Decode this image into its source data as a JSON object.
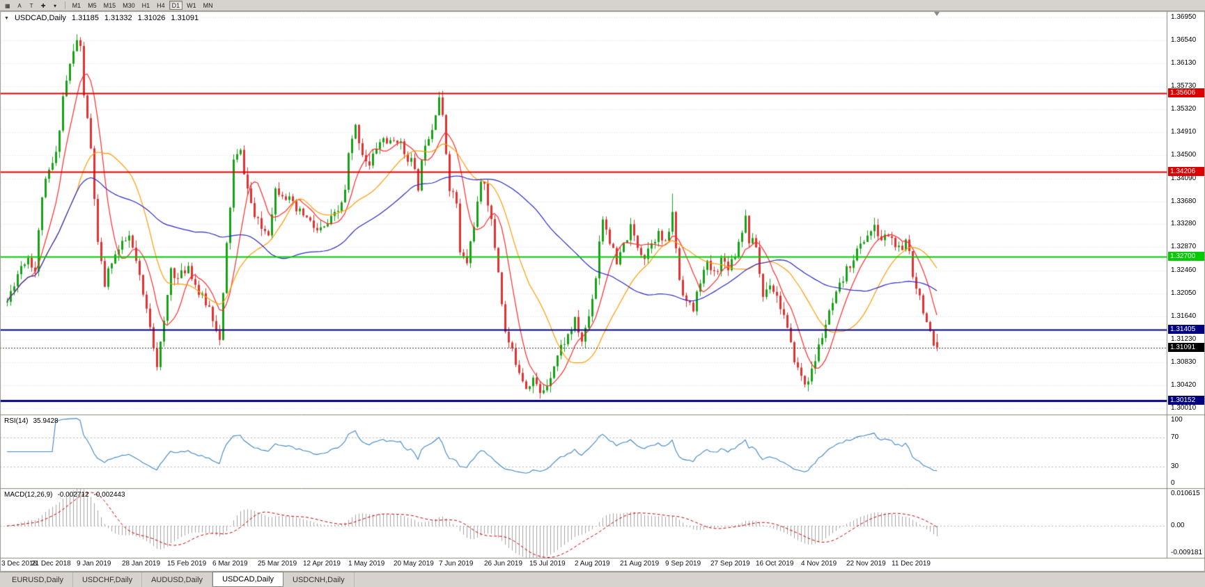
{
  "toolbar": {
    "icons": [
      {
        "name": "charts-grid-icon",
        "glyph": "▦"
      },
      {
        "name": "cursor-tool-icon",
        "glyph": "A"
      },
      {
        "name": "text-tool-icon",
        "glyph": "T"
      },
      {
        "name": "crosshair-tool-icon",
        "glyph": "✚"
      },
      {
        "name": "draw-tools-caret-icon",
        "glyph": "▾"
      }
    ],
    "timeframes": [
      "M1",
      "M5",
      "M15",
      "M30",
      "H1",
      "H4",
      "D1",
      "W1",
      "MN"
    ],
    "active_timeframe": "D1"
  },
  "chart": {
    "symbol_header": {
      "icon": "▼",
      "symbol": "USDCAD,Daily",
      "open": "1.31185",
      "high": "1.31332",
      "low": "1.31026",
      "close": "1.31091"
    },
    "price_axis_labels": [
      "1.36950",
      "1.36540",
      "1.36130",
      "1.35730",
      "1.35320",
      "1.34910",
      "1.34500",
      "1.34090",
      "1.33680",
      "1.33280",
      "1.32870",
      "1.32460",
      "1.32050",
      "1.31640",
      "1.31230",
      "1.30830",
      "1.30420",
      "1.30010"
    ],
    "date_labels": [
      "3 Dec 2018",
      "21 Dec 2018",
      "9 Jan 2019",
      "28 Jan 2019",
      "15 Feb 2019",
      "6 Mar 2019",
      "25 Mar 2019",
      "12 Apr 2019",
      "1 May 2019",
      "20 May 2019",
      "7 Jun 2019",
      "26 Jun 2019",
      "15 Jul 2019",
      "2 Aug 2019",
      "21 Aug 2019",
      "9 Sep 2019",
      "27 Sep 2019",
      "16 Oct 2019",
      "4 Nov 2019",
      "22 Nov 2019",
      "11 Dec 2019"
    ],
    "levels": [
      {
        "label": "1.35606",
        "price": 1.35606,
        "color": "#dd0000",
        "width": 2
      },
      {
        "label": "1.34206",
        "price": 1.34206,
        "color": "#dd0000",
        "width": 2
      },
      {
        "label": "1.32700",
        "price": 1.327,
        "color": "#00cc00",
        "width": 2
      },
      {
        "label": "1.31405",
        "price": 1.31405,
        "color": "#000080",
        "width": 2
      },
      {
        "label": "1.30152",
        "price": 1.30152,
        "color": "#000080",
        "width": 3
      }
    ],
    "current_price": {
      "label": "1.31091",
      "price": 1.31091,
      "color": "#000000"
    }
  },
  "rsi": {
    "label": "RSI(14)",
    "value": "35.9428",
    "color": "#3d85c6",
    "levels": [
      70,
      30
    ],
    "axis_labels": [
      {
        "text": "100",
        "v": 100
      },
      {
        "text": "70",
        "v": 70
      },
      {
        "text": "30",
        "v": 30
      },
      {
        "text": "0",
        "v": 0
      }
    ]
  },
  "macd": {
    "label": "MACD(12,26,9)",
    "value_main": "-0.002712",
    "value_signal": "-0.002443",
    "bar_color": "#a3a3a3",
    "signal_color": "#cc0000",
    "axis_labels": [
      {
        "text": "0.010615",
        "v": 0.010615
      },
      {
        "text": "0.00",
        "v": 0
      },
      {
        "text": "-0.009181",
        "v": -0.009181
      }
    ]
  },
  "tabs": [
    {
      "label": "EURUSD,Daily",
      "active": false
    },
    {
      "label": "USDCHF,Daily",
      "active": false
    },
    {
      "label": "AUDUSD,Daily",
      "active": false
    },
    {
      "label": "USDCAD,Daily",
      "active": true
    },
    {
      "label": "USDCNH,Daily",
      "active": false
    }
  ],
  "chart_data": {
    "type": "candlestick",
    "symbol": "USDCAD",
    "timeframe": "Daily",
    "candles": 268,
    "seed": 11,
    "price_top": 1.3706,
    "price_bottom": 1.299,
    "ohlc_last": {
      "open": 1.31185,
      "high": 1.31332,
      "low": 1.31026,
      "close": 1.31091
    },
    "indicators": {
      "rsi_period": 14,
      "rsi_last": 35.9428,
      "macd": [
        12,
        26,
        9
      ],
      "macd_last": -0.002712,
      "macd_signal_last": -0.002443
    },
    "levels": [
      1.35606,
      1.34206,
      1.327,
      1.31405,
      1.30152
    ],
    "waypoints": [
      [
        0,
        1.319
      ],
      [
        2,
        1.3225
      ],
      [
        4,
        1.3255
      ],
      [
        6,
        1.327
      ],
      [
        8,
        1.3245
      ],
      [
        10,
        1.338
      ],
      [
        12,
        1.342
      ],
      [
        14,
        1.345
      ],
      [
        16,
        1.3555
      ],
      [
        18,
        1.361
      ],
      [
        20,
        1.3655
      ],
      [
        21,
        1.364
      ],
      [
        22,
        1.356
      ],
      [
        24,
        1.346
      ],
      [
        26,
        1.329
      ],
      [
        28,
        1.322
      ],
      [
        30,
        1.3265
      ],
      [
        33,
        1.329
      ],
      [
        35,
        1.3305
      ],
      [
        37,
        1.326
      ],
      [
        39,
        1.32
      ],
      [
        41,
        1.315
      ],
      [
        43,
        1.308
      ],
      [
        45,
        1.315
      ],
      [
        47,
        1.325
      ],
      [
        49,
        1.323
      ],
      [
        52,
        1.3255
      ],
      [
        55,
        1.3205
      ],
      [
        58,
        1.318
      ],
      [
        60,
        1.3145
      ],
      [
        61,
        1.312
      ],
      [
        62,
        1.32
      ],
      [
        63,
        1.329
      ],
      [
        64,
        1.336
      ],
      [
        65,
        1.344
      ],
      [
        67,
        1.3455
      ],
      [
        69,
        1.339
      ],
      [
        71,
        1.334
      ],
      [
        73,
        1.332
      ],
      [
        75,
        1.3315
      ],
      [
        77,
        1.339
      ],
      [
        79,
        1.3385
      ],
      [
        81,
        1.337
      ],
      [
        83,
        1.335
      ],
      [
        85,
        1.3345
      ],
      [
        87,
        1.333
      ],
      [
        89,
        1.3315
      ],
      [
        91,
        1.332
      ],
      [
        93,
        1.3335
      ],
      [
        95,
        1.335
      ],
      [
        97,
        1.3385
      ],
      [
        98,
        1.345
      ],
      [
        100,
        1.35
      ],
      [
        102,
        1.3455
      ],
      [
        104,
        1.343
      ],
      [
        106,
        1.3465
      ],
      [
        108,
        1.348
      ],
      [
        110,
        1.347
      ],
      [
        112,
        1.348
      ],
      [
        114,
        1.3455
      ],
      [
        116,
        1.344
      ],
      [
        118,
        1.3395
      ],
      [
        120,
        1.3475
      ],
      [
        122,
        1.35
      ],
      [
        123,
        1.353
      ],
      [
        124,
        1.3555
      ],
      [
        125,
        1.3515
      ],
      [
        127,
        1.3395
      ],
      [
        129,
        1.3365
      ],
      [
        130,
        1.3275
      ],
      [
        132,
        1.326
      ],
      [
        134,
        1.333
      ],
      [
        136,
        1.3395
      ],
      [
        137,
        1.3405
      ],
      [
        139,
        1.333
      ],
      [
        141,
        1.3245
      ],
      [
        143,
        1.3135
      ],
      [
        145,
        1.31
      ],
      [
        147,
        1.307
      ],
      [
        149,
        1.304
      ],
      [
        151,
        1.3055
      ],
      [
        153,
        1.3025
      ],
      [
        155,
        1.3045
      ],
      [
        157,
        1.308
      ],
      [
        159,
        1.311
      ],
      [
        161,
        1.313
      ],
      [
        163,
        1.3155
      ],
      [
        165,
        1.312
      ],
      [
        167,
        1.3165
      ],
      [
        169,
        1.3235
      ],
      [
        170,
        1.33
      ],
      [
        171,
        1.334
      ],
      [
        173,
        1.33
      ],
      [
        175,
        1.3255
      ],
      [
        177,
        1.329
      ],
      [
        179,
        1.332
      ],
      [
        181,
        1.329
      ],
      [
        183,
        1.327
      ],
      [
        185,
        1.33
      ],
      [
        187,
        1.331
      ],
      [
        189,
        1.329
      ],
      [
        191,
        1.3345
      ],
      [
        193,
        1.323
      ],
      [
        195,
        1.319
      ],
      [
        197,
        1.3175
      ],
      [
        199,
        1.323
      ],
      [
        201,
        1.3255
      ],
      [
        203,
        1.324
      ],
      [
        205,
        1.3265
      ],
      [
        207,
        1.3255
      ],
      [
        209,
        1.3275
      ],
      [
        211,
        1.332
      ],
      [
        212,
        1.334
      ],
      [
        213,
        1.33
      ],
      [
        215,
        1.329
      ],
      [
        216,
        1.324
      ],
      [
        217,
        1.32
      ],
      [
        219,
        1.3225
      ],
      [
        221,
        1.32
      ],
      [
        223,
        1.3165
      ],
      [
        225,
        1.311
      ],
      [
        227,
        1.307
      ],
      [
        229,
        1.3045
      ],
      [
        231,
        1.3065
      ],
      [
        233,
        1.311
      ],
      [
        235,
        1.315
      ],
      [
        237,
        1.3185
      ],
      [
        239,
        1.3215
      ],
      [
        241,
        1.3245
      ],
      [
        243,
        1.327
      ],
      [
        245,
        1.329
      ],
      [
        247,
        1.331
      ],
      [
        249,
        1.332
      ],
      [
        251,
        1.33
      ],
      [
        253,
        1.331
      ],
      [
        255,
        1.329
      ],
      [
        257,
        1.3275
      ],
      [
        258,
        1.33
      ],
      [
        259,
        1.328
      ],
      [
        260,
        1.324
      ],
      [
        262,
        1.32
      ],
      [
        264,
        1.3155
      ],
      [
        266,
        1.3105
      ],
      [
        267,
        1.3109
      ]
    ],
    "wick_overrides": {
      "20": {
        "h": 1.3665
      },
      "43": {
        "l": 1.3068
      },
      "124": {
        "h": 1.3563
      },
      "153": {
        "l": 1.3018
      },
      "191": {
        "h": 1.3382
      },
      "229": {
        "l": 1.3038
      },
      "267": {
        "o": 1.31185,
        "h": 1.31332,
        "l": 1.31026,
        "c": 1.31091
      }
    },
    "moving_averages": [
      {
        "period": 8,
        "color": "#ff2a2a"
      },
      {
        "period": 21,
        "color": "#ff9c00"
      },
      {
        "period": 55,
        "color": "#2929c8"
      }
    ],
    "macd_scale": {
      "top": 0.010615,
      "bottom": -0.009181
    },
    "candle_colors": {
      "up": "#18a118",
      "down": "#e03232"
    }
  }
}
